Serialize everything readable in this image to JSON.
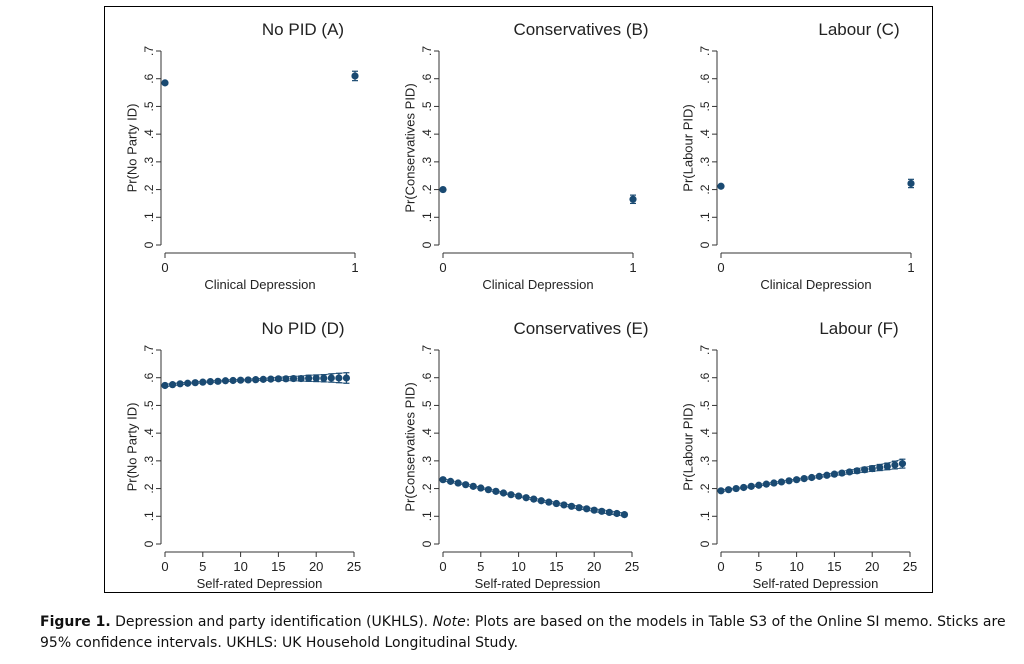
{
  "colors": {
    "marker": "#1a4a72",
    "axis": "#333333",
    "frame": "#000000"
  },
  "caption": {
    "label": "Figure 1.",
    "text1": " Depression and party identification (UKHLS). ",
    "note_word": "Note",
    "text2": ": Plots are based on the models in Table S3 of the Online SI memo. Sticks are 95% confidence intervals. UKHLS: UK Household Longitudinal Study."
  },
  "chart_data": [
    {
      "type": "scatter",
      "title": "No PID (A)",
      "xlabel": "Clinical Depression",
      "ylabel": "Pr(No Party ID)",
      "xticks": [
        0,
        1
      ],
      "xlim": [
        0,
        1
      ],
      "yticks": [
        0,
        0.1,
        0.2,
        0.3,
        0.4,
        0.5,
        0.6,
        0.7
      ],
      "ytick_labels": [
        "0",
        ".1",
        ".2",
        ".3",
        ".4",
        ".5",
        ".6",
        ".7"
      ],
      "ylim": [
        0,
        0.7
      ],
      "points": [
        {
          "x": 0,
          "y": 0.585,
          "lo": 0.58,
          "hi": 0.59
        },
        {
          "x": 1,
          "y": 0.61,
          "lo": 0.593,
          "hi": 0.627
        }
      ]
    },
    {
      "type": "scatter",
      "title": "Conservatives (B)",
      "xlabel": "Clinical Depression",
      "ylabel": "Pr(Conservatives PID)",
      "xticks": [
        0,
        1
      ],
      "xlim": [
        0,
        1
      ],
      "yticks": [
        0,
        0.1,
        0.2,
        0.3,
        0.4,
        0.5,
        0.6,
        0.7
      ],
      "ytick_labels": [
        "0",
        ".1",
        ".2",
        ".3",
        ".4",
        ".5",
        ".6",
        ".7"
      ],
      "ylim": [
        0,
        0.7
      ],
      "points": [
        {
          "x": 0,
          "y": 0.2,
          "lo": 0.196,
          "hi": 0.204
        },
        {
          "x": 1,
          "y": 0.165,
          "lo": 0.15,
          "hi": 0.18
        }
      ]
    },
    {
      "type": "scatter",
      "title": "Labour (C)",
      "xlabel": "Clinical Depression",
      "ylabel": "Pr(Labour PID)",
      "xticks": [
        0,
        1
      ],
      "xlim": [
        0,
        1
      ],
      "yticks": [
        0,
        0.1,
        0.2,
        0.3,
        0.4,
        0.5,
        0.6,
        0.7
      ],
      "ytick_labels": [
        "0",
        ".1",
        ".2",
        ".3",
        ".4",
        ".5",
        ".6",
        ".7"
      ],
      "ylim": [
        0,
        0.7
      ],
      "points": [
        {
          "x": 0,
          "y": 0.212,
          "lo": 0.208,
          "hi": 0.216
        },
        {
          "x": 1,
          "y": 0.222,
          "lo": 0.207,
          "hi": 0.237
        }
      ]
    },
    {
      "type": "scatter",
      "title": "No PID (D)",
      "xlabel": "Self-rated Depression",
      "ylabel": "Pr(No Party ID)",
      "xticks": [
        0,
        5,
        10,
        15,
        20,
        25
      ],
      "xlim": [
        0,
        25
      ],
      "yticks": [
        0,
        0.1,
        0.2,
        0.3,
        0.4,
        0.5,
        0.6,
        0.7
      ],
      "ytick_labels": [
        "0",
        ".1",
        ".2",
        ".3",
        ".4",
        ".5",
        ".6",
        ".7"
      ],
      "ylim": [
        0,
        0.7
      ],
      "points": [
        {
          "x": 0,
          "y": 0.572,
          "lo": 0.567,
          "hi": 0.577
        },
        {
          "x": 1,
          "y": 0.575,
          "lo": 0.571,
          "hi": 0.579
        },
        {
          "x": 2,
          "y": 0.578,
          "lo": 0.574,
          "hi": 0.582
        },
        {
          "x": 3,
          "y": 0.58,
          "lo": 0.577,
          "hi": 0.583
        },
        {
          "x": 4,
          "y": 0.582,
          "lo": 0.579,
          "hi": 0.585
        },
        {
          "x": 5,
          "y": 0.584,
          "lo": 0.581,
          "hi": 0.587
        },
        {
          "x": 6,
          "y": 0.586,
          "lo": 0.583,
          "hi": 0.589
        },
        {
          "x": 7,
          "y": 0.587,
          "lo": 0.584,
          "hi": 0.59
        },
        {
          "x": 8,
          "y": 0.589,
          "lo": 0.586,
          "hi": 0.592
        },
        {
          "x": 9,
          "y": 0.59,
          "lo": 0.587,
          "hi": 0.593
        },
        {
          "x": 10,
          "y": 0.591,
          "lo": 0.588,
          "hi": 0.594
        },
        {
          "x": 11,
          "y": 0.592,
          "lo": 0.589,
          "hi": 0.595
        },
        {
          "x": 12,
          "y": 0.593,
          "lo": 0.589,
          "hi": 0.597
        },
        {
          "x": 13,
          "y": 0.594,
          "lo": 0.59,
          "hi": 0.598
        },
        {
          "x": 14,
          "y": 0.595,
          "lo": 0.59,
          "hi": 0.6
        },
        {
          "x": 15,
          "y": 0.596,
          "lo": 0.59,
          "hi": 0.602
        },
        {
          "x": 16,
          "y": 0.596,
          "lo": 0.589,
          "hi": 0.603
        },
        {
          "x": 17,
          "y": 0.597,
          "lo": 0.589,
          "hi": 0.605
        },
        {
          "x": 18,
          "y": 0.597,
          "lo": 0.588,
          "hi": 0.606
        },
        {
          "x": 19,
          "y": 0.598,
          "lo": 0.587,
          "hi": 0.609
        },
        {
          "x": 20,
          "y": 0.598,
          "lo": 0.586,
          "hi": 0.61
        },
        {
          "x": 21,
          "y": 0.598,
          "lo": 0.585,
          "hi": 0.611
        },
        {
          "x": 22,
          "y": 0.599,
          "lo": 0.584,
          "hi": 0.614
        },
        {
          "x": 23,
          "y": 0.599,
          "lo": 0.582,
          "hi": 0.616
        },
        {
          "x": 24,
          "y": 0.599,
          "lo": 0.58,
          "hi": 0.618
        }
      ]
    },
    {
      "type": "scatter",
      "title": "Conservatives (E)",
      "xlabel": "Self-rated Depression",
      "ylabel": "Pr(Conservatives PID)",
      "xticks": [
        0,
        5,
        10,
        15,
        20,
        25
      ],
      "xlim": [
        0,
        25
      ],
      "yticks": [
        0,
        0.1,
        0.2,
        0.3,
        0.4,
        0.5,
        0.6,
        0.7
      ],
      "ytick_labels": [
        "0",
        ".1",
        ".2",
        ".3",
        ".4",
        ".5",
        ".6",
        ".7"
      ],
      "ylim": [
        0,
        0.7
      ],
      "points": [
        {
          "x": 0,
          "y": 0.232,
          "lo": 0.228,
          "hi": 0.236
        },
        {
          "x": 1,
          "y": 0.226,
          "lo": 0.222,
          "hi": 0.23
        },
        {
          "x": 2,
          "y": 0.22,
          "lo": 0.217,
          "hi": 0.223
        },
        {
          "x": 3,
          "y": 0.214,
          "lo": 0.211,
          "hi": 0.217
        },
        {
          "x": 4,
          "y": 0.208,
          "lo": 0.205,
          "hi": 0.211
        },
        {
          "x": 5,
          "y": 0.202,
          "lo": 0.199,
          "hi": 0.205
        },
        {
          "x": 6,
          "y": 0.196,
          "lo": 0.193,
          "hi": 0.199
        },
        {
          "x": 7,
          "y": 0.19,
          "lo": 0.187,
          "hi": 0.193
        },
        {
          "x": 8,
          "y": 0.184,
          "lo": 0.181,
          "hi": 0.187
        },
        {
          "x": 9,
          "y": 0.178,
          "lo": 0.175,
          "hi": 0.181
        },
        {
          "x": 10,
          "y": 0.173,
          "lo": 0.17,
          "hi": 0.176
        },
        {
          "x": 11,
          "y": 0.167,
          "lo": 0.164,
          "hi": 0.17
        },
        {
          "x": 12,
          "y": 0.162,
          "lo": 0.158,
          "hi": 0.166
        },
        {
          "x": 13,
          "y": 0.156,
          "lo": 0.152,
          "hi": 0.16
        },
        {
          "x": 14,
          "y": 0.151,
          "lo": 0.147,
          "hi": 0.155
        },
        {
          "x": 15,
          "y": 0.146,
          "lo": 0.142,
          "hi": 0.15
        },
        {
          "x": 16,
          "y": 0.141,
          "lo": 0.137,
          "hi": 0.145
        },
        {
          "x": 17,
          "y": 0.136,
          "lo": 0.131,
          "hi": 0.141
        },
        {
          "x": 18,
          "y": 0.131,
          "lo": 0.126,
          "hi": 0.136
        },
        {
          "x": 19,
          "y": 0.127,
          "lo": 0.122,
          "hi": 0.132
        },
        {
          "x": 20,
          "y": 0.122,
          "lo": 0.117,
          "hi": 0.127
        },
        {
          "x": 21,
          "y": 0.118,
          "lo": 0.112,
          "hi": 0.124
        },
        {
          "x": 22,
          "y": 0.114,
          "lo": 0.108,
          "hi": 0.12
        },
        {
          "x": 23,
          "y": 0.11,
          "lo": 0.104,
          "hi": 0.116
        },
        {
          "x": 24,
          "y": 0.106,
          "lo": 0.1,
          "hi": 0.112
        }
      ]
    },
    {
      "type": "scatter",
      "title": "Labour (F)",
      "xlabel": "Self-rated Depression",
      "ylabel": "Pr(Labour PID)",
      "xticks": [
        0,
        5,
        10,
        15,
        20,
        25
      ],
      "xlim": [
        0,
        25
      ],
      "yticks": [
        0,
        0.1,
        0.2,
        0.3,
        0.4,
        0.5,
        0.6,
        0.7
      ],
      "ytick_labels": [
        "0",
        ".1",
        ".2",
        ".3",
        ".4",
        ".5",
        ".6",
        ".7"
      ],
      "ylim": [
        0,
        0.7
      ],
      "points": [
        {
          "x": 0,
          "y": 0.192,
          "lo": 0.188,
          "hi": 0.196
        },
        {
          "x": 1,
          "y": 0.196,
          "lo": 0.193,
          "hi": 0.199
        },
        {
          "x": 2,
          "y": 0.2,
          "lo": 0.197,
          "hi": 0.203
        },
        {
          "x": 3,
          "y": 0.204,
          "lo": 0.201,
          "hi": 0.207
        },
        {
          "x": 4,
          "y": 0.208,
          "lo": 0.205,
          "hi": 0.211
        },
        {
          "x": 5,
          "y": 0.212,
          "lo": 0.209,
          "hi": 0.215
        },
        {
          "x": 6,
          "y": 0.216,
          "lo": 0.213,
          "hi": 0.219
        },
        {
          "x": 7,
          "y": 0.22,
          "lo": 0.217,
          "hi": 0.223
        },
        {
          "x": 8,
          "y": 0.224,
          "lo": 0.221,
          "hi": 0.227
        },
        {
          "x": 9,
          "y": 0.228,
          "lo": 0.225,
          "hi": 0.231
        },
        {
          "x": 10,
          "y": 0.232,
          "lo": 0.229,
          "hi": 0.235
        },
        {
          "x": 11,
          "y": 0.236,
          "lo": 0.232,
          "hi": 0.24
        },
        {
          "x": 12,
          "y": 0.24,
          "lo": 0.236,
          "hi": 0.244
        },
        {
          "x": 13,
          "y": 0.244,
          "lo": 0.24,
          "hi": 0.248
        },
        {
          "x": 14,
          "y": 0.248,
          "lo": 0.243,
          "hi": 0.253
        },
        {
          "x": 15,
          "y": 0.252,
          "lo": 0.247,
          "hi": 0.257
        },
        {
          "x": 16,
          "y": 0.256,
          "lo": 0.25,
          "hi": 0.262
        },
        {
          "x": 17,
          "y": 0.26,
          "lo": 0.253,
          "hi": 0.267
        },
        {
          "x": 18,
          "y": 0.264,
          "lo": 0.256,
          "hi": 0.272
        },
        {
          "x": 19,
          "y": 0.268,
          "lo": 0.259,
          "hi": 0.277
        },
        {
          "x": 20,
          "y": 0.272,
          "lo": 0.262,
          "hi": 0.282
        },
        {
          "x": 21,
          "y": 0.276,
          "lo": 0.265,
          "hi": 0.287
        },
        {
          "x": 22,
          "y": 0.28,
          "lo": 0.268,
          "hi": 0.292
        },
        {
          "x": 23,
          "y": 0.285,
          "lo": 0.271,
          "hi": 0.299
        },
        {
          "x": 24,
          "y": 0.29,
          "lo": 0.274,
          "hi": 0.306
        }
      ]
    }
  ]
}
